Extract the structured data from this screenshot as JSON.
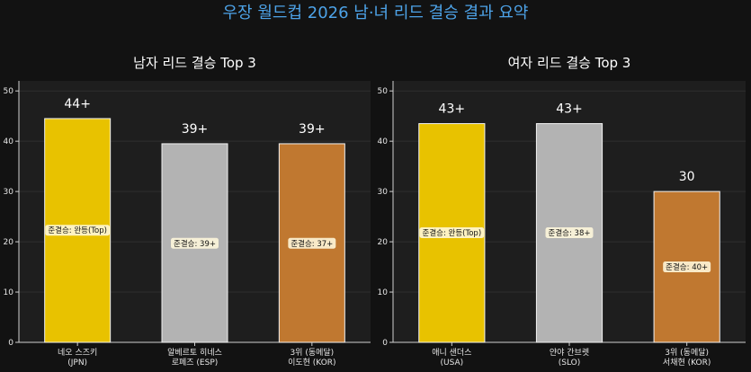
{
  "suptitle": "우장 월드컵 2026 남·녀 리드 결승 결과 요약",
  "colors": {
    "title": "#4da3e8",
    "gold": "#e8c200",
    "silver": "#b3b3b3",
    "bronze": "#c07830",
    "panel": "#1e1e1e",
    "page": "#121212"
  },
  "chart_data": [
    {
      "type": "bar",
      "title": "남자 리드 결승 Top 3",
      "xlabel": "",
      "ylabel": "",
      "ylim": [
        0,
        52
      ],
      "yticks": [
        0,
        10,
        20,
        30,
        40,
        50
      ],
      "grid": true,
      "categories": [
        [
          "네오 스즈키",
          "(JPN)"
        ],
        [
          "알베르토 히네스",
          "로페즈 (ESP)"
        ],
        [
          "3위 (동메달)",
          "이도현 (KOR)"
        ]
      ],
      "values": [
        44.5,
        39.5,
        39.5
      ],
      "value_labels": [
        "44+",
        "39+",
        "39+"
      ],
      "bar_colors": [
        "gold",
        "silver",
        "bronze"
      ],
      "semifinal_labels": [
        "준결승: 완등(Top)",
        "준결승: 39+",
        "준결승: 37+"
      ],
      "semifinal_label_y": [
        22.3,
        19.7,
        19.7
      ]
    },
    {
      "type": "bar",
      "title": "여자 리드 결승 Top 3",
      "xlabel": "",
      "ylabel": "",
      "ylim": [
        0,
        52
      ],
      "yticks": [
        0,
        10,
        20,
        30,
        40,
        50
      ],
      "grid": true,
      "categories": [
        [
          "애니 샌더스",
          "(USA)"
        ],
        [
          "얀야 간브렛",
          "(SLO)"
        ],
        [
          "3위 (동메달)",
          "서채현 (KOR)"
        ]
      ],
      "values": [
        43.5,
        43.5,
        30
      ],
      "value_labels": [
        "43+",
        "43+",
        "30"
      ],
      "bar_colors": [
        "gold",
        "silver",
        "bronze"
      ],
      "semifinal_labels": [
        "준결승: 완등(Top)",
        "준결승: 38+",
        "준결승: 40+"
      ],
      "semifinal_label_y": [
        21.8,
        21.8,
        15
      ]
    }
  ]
}
